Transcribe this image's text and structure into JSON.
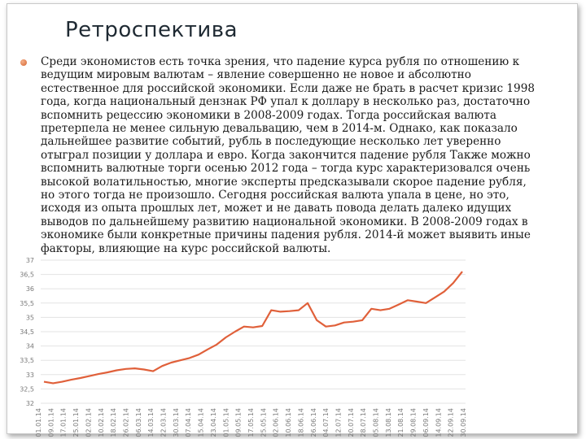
{
  "slide": {
    "title": "Ретроспектива",
    "paragraph": "Среди экономистов есть точка зрения, что падение курса рубля по отношению к ведущим мировым валютам – явление совершенно не новое и абсолютно естественное для российской экономики. Если даже не брать в расчет кризис 1998 года, когда национальный дензнак РФ упал к доллару в несколько раз, достаточно вспомнить рецессию экономики в 2008-2009 годах. Тогда российская валюта претерпела не менее сильную девальвацию, чем в 2014-м. Однако, как показало дальнейшее развитие событий, рубль в последующие несколько лет уверенно отыграл позиции у доллара и евро. Когда закончится падение рубля Также можно вспомнить валютные торги осенью 2012 года – тогда курс характеризовался очень высокой волатильностью, многие эксперты предсказывали скорое падение рубля, но этого тогда не произошло. Сегодня российская валюта упала в цене, но это, исходя из опыта прошлых лет, может и не давать повода делать далеко идущих выводов по дальнейшему развитию национальной экономики. В 2008-2009 годах в экономике были конкретные причины падения рубля. 2014-й может выявить иные факторы, влияющие на курс российской валюты."
  },
  "chart_data": {
    "type": "line",
    "ylim": [
      32,
      37
    ],
    "y_ticks": [
      "32",
      "32,5",
      "33",
      "33,5",
      "34",
      "34,5",
      "35",
      "35,5",
      "36",
      "36,5",
      "37"
    ],
    "x_ticks": [
      "01.01.14",
      "09.01.14",
      "17.01.14",
      "25.01.14",
      "02.02.14",
      "10.02.14",
      "18.02.14",
      "26.02.14",
      "06.03.14",
      "14.03.14",
      "22.03.14",
      "30.03.14",
      "07.04.14",
      "15.04.14",
      "23.04.14",
      "01.05.14",
      "09.05.14",
      "17.05.14",
      "25.05.14",
      "02.06.14",
      "10.06.14",
      "18.06.14",
      "26.06.14",
      "04.07.14",
      "12.07.14",
      "20.07.14",
      "28.07.14",
      "05.08.14",
      "13.08.14",
      "21.08.14",
      "29.08.14",
      "06.09.14",
      "14.09.14",
      "22.09.14",
      "30.09.14"
    ],
    "series": [
      {
        "color": "#e0603a",
        "values": [
          32.75,
          32.7,
          32.75,
          32.82,
          32.88,
          32.95,
          33.02,
          33.08,
          33.15,
          33.2,
          33.22,
          33.18,
          33.12,
          33.3,
          33.42,
          33.5,
          33.58,
          33.7,
          33.88,
          34.05,
          34.3,
          34.5,
          34.68,
          34.65,
          34.7,
          35.25,
          35.2,
          35.22,
          35.25,
          35.5,
          34.9,
          34.68,
          34.72,
          34.82,
          34.85,
          34.9,
          35.3,
          35.25,
          35.3,
          35.45,
          35.6,
          35.55,
          35.5,
          35.7,
          35.9,
          36.2,
          36.6
        ]
      }
    ]
  }
}
